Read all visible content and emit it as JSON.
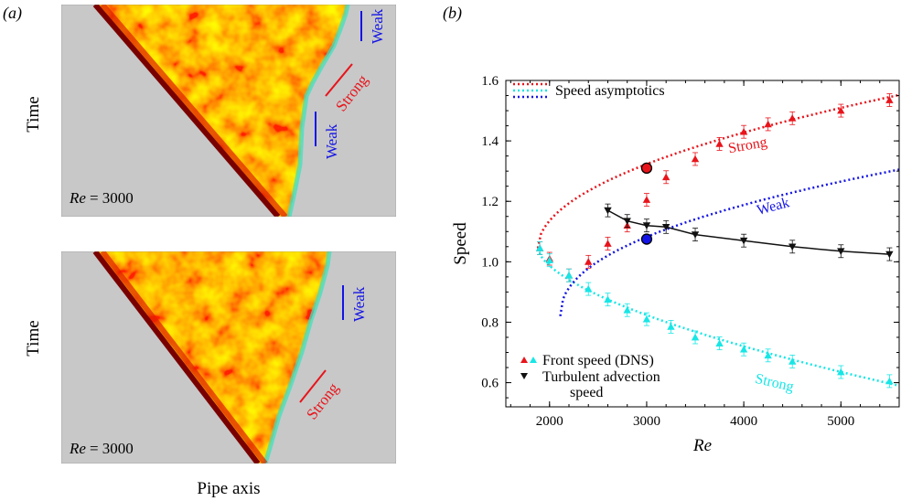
{
  "panel_a": {
    "label": "(a)",
    "y_label": "Time",
    "x_label": "Pipe axis",
    "top": {
      "re_label": "Re",
      "re_value": "= 3000",
      "annotations": [
        "Weak",
        "Strong",
        "Weak"
      ]
    },
    "bottom": {
      "re_label": "Re",
      "re_value": "= 3000",
      "annotations": [
        "Weak",
        "Strong"
      ]
    }
  },
  "panel_b": {
    "label": "(b)"
  },
  "colors": {
    "strong": "#e8141b",
    "weak": "#1414e6",
    "cyan": "#18e6e6",
    "black": "#111111",
    "background_gray": "#c8c8c8"
  },
  "chart_data": {
    "type": "scatter",
    "xlabel": "Re",
    "ylabel": "Speed",
    "xlim": [
      1550,
      5600
    ],
    "ylim": [
      0.52,
      1.6
    ],
    "xticks": [
      2000,
      3000,
      4000,
      5000
    ],
    "yticks": [
      0.6,
      0.8,
      1.0,
      1.2,
      1.4,
      1.6
    ],
    "legend": {
      "placement": "top-left",
      "top_entry": "Speed asymptotics",
      "bottom_entries": [
        "Front speed (DNS)",
        "Turbulent advection",
        "speed"
      ]
    },
    "curve_labels": {
      "strong_upper": "Strong",
      "weak": "Weak",
      "strong_lower": "Strong"
    },
    "series": [
      {
        "name": "Front speed (DNS)",
        "color": "red",
        "marker": "triangle-up",
        "x": [
          1900,
          2000,
          2200,
          2400,
          2600,
          2800,
          3000,
          3200,
          3500,
          3750,
          4000,
          4250,
          4500,
          5000,
          5500
        ],
        "y": [
          1.045,
          1.01,
          0.955,
          1.0,
          1.06,
          1.12,
          1.205,
          1.28,
          1.34,
          1.39,
          1.43,
          1.455,
          1.475,
          1.5,
          1.535
        ]
      },
      {
        "name": "Front speed (DNS) cyan",
        "color": "cyan",
        "marker": "triangle-up",
        "x": [
          1900,
          2000,
          2200,
          2400,
          2600,
          2800,
          3000,
          3250,
          3500,
          3750,
          4000,
          4250,
          4500,
          5000,
          5500
        ],
        "y": [
          1.045,
          1.005,
          0.955,
          0.91,
          0.875,
          0.84,
          0.81,
          0.785,
          0.75,
          0.73,
          0.71,
          0.69,
          0.67,
          0.635,
          0.605
        ]
      },
      {
        "name": "Turbulent advection speed",
        "color": "black",
        "marker": "triangle-down",
        "x": [
          2600,
          2800,
          3000,
          3200,
          3500,
          4000,
          4500,
          5000,
          5500
        ],
        "y": [
          1.17,
          1.135,
          1.12,
          1.115,
          1.09,
          1.07,
          1.05,
          1.035,
          1.025
        ]
      },
      {
        "name": "Speed asymptotics strong (upper)",
        "color": "red",
        "curve": true
      },
      {
        "name": "Speed asymptotics weak",
        "color": "blue",
        "curve": true
      },
      {
        "name": "Speed asymptotics strong (lower)",
        "color": "cyan",
        "curve": true
      }
    ],
    "highlight_points": [
      {
        "x": 3000,
        "y": 1.31,
        "color": "red"
      },
      {
        "x": 3000,
        "y": 1.075,
        "color": "blue"
      }
    ],
    "grid": false
  }
}
